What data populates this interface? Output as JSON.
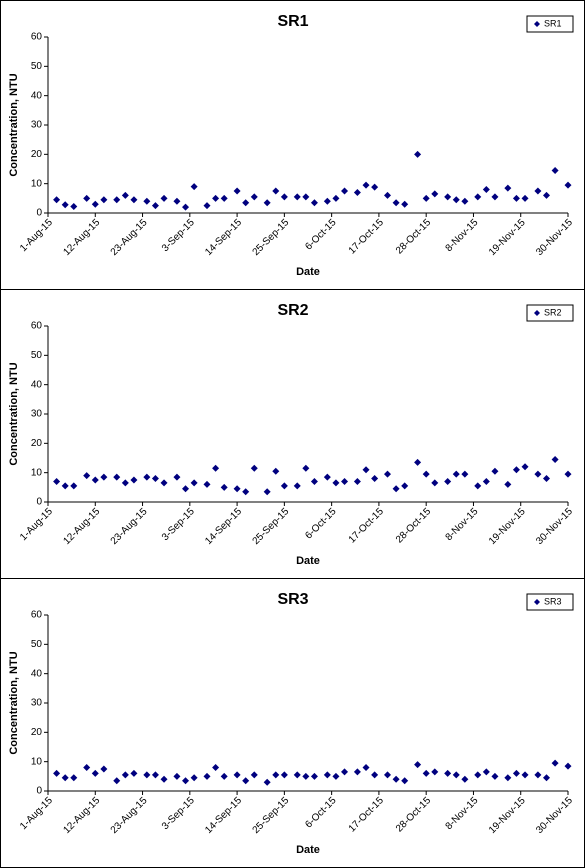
{
  "chart_data": [
    {
      "type": "scatter",
      "title": "SR1",
      "xlabel": "Date",
      "ylabel": "Concentration, NTU",
      "x": [
        "2015-08-03",
        "2015-08-05",
        "2015-08-07",
        "2015-08-10",
        "2015-08-12",
        "2015-08-14",
        "2015-08-17",
        "2015-08-19",
        "2015-08-21",
        "2015-08-24",
        "2015-08-26",
        "2015-08-28",
        "2015-08-31",
        "2015-09-02",
        "2015-09-04",
        "2015-09-07",
        "2015-09-09",
        "2015-09-11",
        "2015-09-14",
        "2015-09-16",
        "2015-09-18",
        "2015-09-21",
        "2015-09-23",
        "2015-09-25",
        "2015-09-28",
        "2015-09-30",
        "2015-10-02",
        "2015-10-05",
        "2015-10-07",
        "2015-10-09",
        "2015-10-12",
        "2015-10-14",
        "2015-10-16",
        "2015-10-19",
        "2015-10-21",
        "2015-10-23",
        "2015-10-26",
        "2015-10-28",
        "2015-10-30",
        "2015-11-02",
        "2015-11-04",
        "2015-11-06",
        "2015-11-09",
        "2015-11-11",
        "2015-11-13",
        "2015-11-16",
        "2015-11-18",
        "2015-11-20",
        "2015-11-23",
        "2015-11-25",
        "2015-11-27",
        "2015-11-30"
      ],
      "series": [
        {
          "name": "SR1",
          "color": "#00007f",
          "values": [
            4.5,
            2.8,
            2.2,
            5,
            3,
            4.5,
            4.5,
            6,
            4.5,
            4,
            2.5,
            5,
            4,
            2,
            9,
            2.5,
            5,
            5,
            7.5,
            3.5,
            5.5,
            3.5,
            7.5,
            5.5,
            5.5,
            5.5,
            3.5,
            4,
            5,
            7.5,
            7,
            9.5,
            8.8,
            6,
            3.5,
            3,
            20,
            5,
            6.5,
            5.5,
            4.5,
            4,
            5.5,
            8,
            5.5,
            8.5,
            5,
            5,
            7.5,
            6,
            14.5,
            9.5
          ]
        }
      ],
      "xlim": [
        "2015-08-01",
        "2015-11-30"
      ],
      "xticks": [
        {
          "value": "2015-08-01",
          "label": "1-Aug-15"
        },
        {
          "value": "2015-08-12",
          "label": "12-Aug-15"
        },
        {
          "value": "2015-08-23",
          "label": "23-Aug-15"
        },
        {
          "value": "2015-09-03",
          "label": "3-Sep-15"
        },
        {
          "value": "2015-09-14",
          "label": "14-Sep-15"
        },
        {
          "value": "2015-09-25",
          "label": "25-Sep-15"
        },
        {
          "value": "2015-10-06",
          "label": "6-Oct-15"
        },
        {
          "value": "2015-10-17",
          "label": "17-Oct-15"
        },
        {
          "value": "2015-10-28",
          "label": "28-Oct-15"
        },
        {
          "value": "2015-11-08",
          "label": "8-Nov-15"
        },
        {
          "value": "2015-11-19",
          "label": "19-Nov-15"
        },
        {
          "value": "2015-11-30",
          "label": "30-Nov-15"
        }
      ],
      "ylim": [
        0,
        60
      ],
      "yticks": [
        0,
        10,
        20,
        30,
        40,
        50,
        60
      ],
      "legend": "top-right"
    },
    {
      "type": "scatter",
      "title": "SR2",
      "xlabel": "Date",
      "ylabel": "Concentration, NTU",
      "x": [
        "2015-08-03",
        "2015-08-05",
        "2015-08-07",
        "2015-08-10",
        "2015-08-12",
        "2015-08-14",
        "2015-08-17",
        "2015-08-19",
        "2015-08-21",
        "2015-08-24",
        "2015-08-26",
        "2015-08-28",
        "2015-08-31",
        "2015-09-02",
        "2015-09-04",
        "2015-09-07",
        "2015-09-09",
        "2015-09-11",
        "2015-09-14",
        "2015-09-16",
        "2015-09-18",
        "2015-09-21",
        "2015-09-23",
        "2015-09-25",
        "2015-09-28",
        "2015-09-30",
        "2015-10-02",
        "2015-10-05",
        "2015-10-07",
        "2015-10-09",
        "2015-10-12",
        "2015-10-14",
        "2015-10-16",
        "2015-10-19",
        "2015-10-21",
        "2015-10-23",
        "2015-10-26",
        "2015-10-28",
        "2015-10-30",
        "2015-11-02",
        "2015-11-04",
        "2015-11-06",
        "2015-11-09",
        "2015-11-11",
        "2015-11-13",
        "2015-11-16",
        "2015-11-18",
        "2015-11-20",
        "2015-11-23",
        "2015-11-25",
        "2015-11-27",
        "2015-11-30"
      ],
      "series": [
        {
          "name": "SR2",
          "color": "#00007f",
          "values": [
            7,
            5.5,
            5.5,
            9,
            7.5,
            8.5,
            8.5,
            6.5,
            7.5,
            8.5,
            8,
            6.5,
            8.5,
            4.5,
            6.5,
            6,
            11.5,
            5,
            4.5,
            3.5,
            11.5,
            3.5,
            10.5,
            5.5,
            5.5,
            11.5,
            7,
            8.5,
            6.5,
            7,
            7,
            11,
            8,
            9.5,
            4.5,
            5.5,
            13.5,
            9.5,
            6.5,
            7,
            9.5,
            9.5,
            5.5,
            7,
            10.5,
            6,
            11,
            12,
            9.5,
            8,
            14.5,
            9.5
          ]
        }
      ],
      "xlim": [
        "2015-08-01",
        "2015-11-30"
      ],
      "xticks": [
        {
          "value": "2015-08-01",
          "label": "1-Aug-15"
        },
        {
          "value": "2015-08-12",
          "label": "12-Aug-15"
        },
        {
          "value": "2015-08-23",
          "label": "23-Aug-15"
        },
        {
          "value": "2015-09-03",
          "label": "3-Sep-15"
        },
        {
          "value": "2015-09-14",
          "label": "14-Sep-15"
        },
        {
          "value": "2015-09-25",
          "label": "25-Sep-15"
        },
        {
          "value": "2015-10-06",
          "label": "6-Oct-15"
        },
        {
          "value": "2015-10-17",
          "label": "17-Oct-15"
        },
        {
          "value": "2015-10-28",
          "label": "28-Oct-15"
        },
        {
          "value": "2015-11-08",
          "label": "8-Nov-15"
        },
        {
          "value": "2015-11-19",
          "label": "19-Nov-15"
        },
        {
          "value": "2015-11-30",
          "label": "30-Nov-15"
        }
      ],
      "ylim": [
        0,
        60
      ],
      "yticks": [
        0,
        10,
        20,
        30,
        40,
        50,
        60
      ],
      "legend": "top-right"
    },
    {
      "type": "scatter",
      "title": "SR3",
      "xlabel": "Date",
      "ylabel": "Concentration, NTU",
      "x": [
        "2015-08-03",
        "2015-08-05",
        "2015-08-07",
        "2015-08-10",
        "2015-08-12",
        "2015-08-14",
        "2015-08-17",
        "2015-08-19",
        "2015-08-21",
        "2015-08-24",
        "2015-08-26",
        "2015-08-28",
        "2015-08-31",
        "2015-09-02",
        "2015-09-04",
        "2015-09-07",
        "2015-09-09",
        "2015-09-11",
        "2015-09-14",
        "2015-09-16",
        "2015-09-18",
        "2015-09-21",
        "2015-09-23",
        "2015-09-25",
        "2015-09-28",
        "2015-09-30",
        "2015-10-02",
        "2015-10-05",
        "2015-10-07",
        "2015-10-09",
        "2015-10-12",
        "2015-10-14",
        "2015-10-16",
        "2015-10-19",
        "2015-10-21",
        "2015-10-23",
        "2015-10-26",
        "2015-10-28",
        "2015-10-30",
        "2015-11-02",
        "2015-11-04",
        "2015-11-06",
        "2015-11-09",
        "2015-11-11",
        "2015-11-13",
        "2015-11-16",
        "2015-11-18",
        "2015-11-20",
        "2015-11-23",
        "2015-11-25",
        "2015-11-27",
        "2015-11-30"
      ],
      "series": [
        {
          "name": "SR3",
          "color": "#00007f",
          "values": [
            6,
            4.5,
            4.5,
            8,
            6,
            7.5,
            3.5,
            5.5,
            6,
            5.5,
            5.5,
            4,
            5,
            3.5,
            4.5,
            5,
            8,
            5,
            5.5,
            3.5,
            5.5,
            3,
            5.5,
            5.5,
            5.5,
            5,
            5,
            5.5,
            5,
            6.5,
            6.5,
            8,
            5.5,
            5.5,
            4,
            3.5,
            9,
            6,
            6.5,
            6,
            5.5,
            4,
            5.5,
            6.5,
            5,
            4.5,
            6,
            5.5,
            5.5,
            4.5,
            9.5,
            8.5
          ]
        }
      ],
      "xlim": [
        "2015-08-01",
        "2015-11-30"
      ],
      "xticks": [
        {
          "value": "2015-08-01",
          "label": "1-Aug-15"
        },
        {
          "value": "2015-08-12",
          "label": "12-Aug-15"
        },
        {
          "value": "2015-08-23",
          "label": "23-Aug-15"
        },
        {
          "value": "2015-09-03",
          "label": "3-Sep-15"
        },
        {
          "value": "2015-09-14",
          "label": "14-Sep-15"
        },
        {
          "value": "2015-09-25",
          "label": "25-Sep-15"
        },
        {
          "value": "2015-10-06",
          "label": "6-Oct-15"
        },
        {
          "value": "2015-10-17",
          "label": "17-Oct-15"
        },
        {
          "value": "2015-10-28",
          "label": "28-Oct-15"
        },
        {
          "value": "2015-11-08",
          "label": "8-Nov-15"
        },
        {
          "value": "2015-11-19",
          "label": "19-Nov-15"
        },
        {
          "value": "2015-11-30",
          "label": "30-Nov-15"
        }
      ],
      "ylim": [
        0,
        60
      ],
      "yticks": [
        0,
        10,
        20,
        30,
        40,
        50,
        60
      ],
      "legend": "top-right"
    }
  ]
}
